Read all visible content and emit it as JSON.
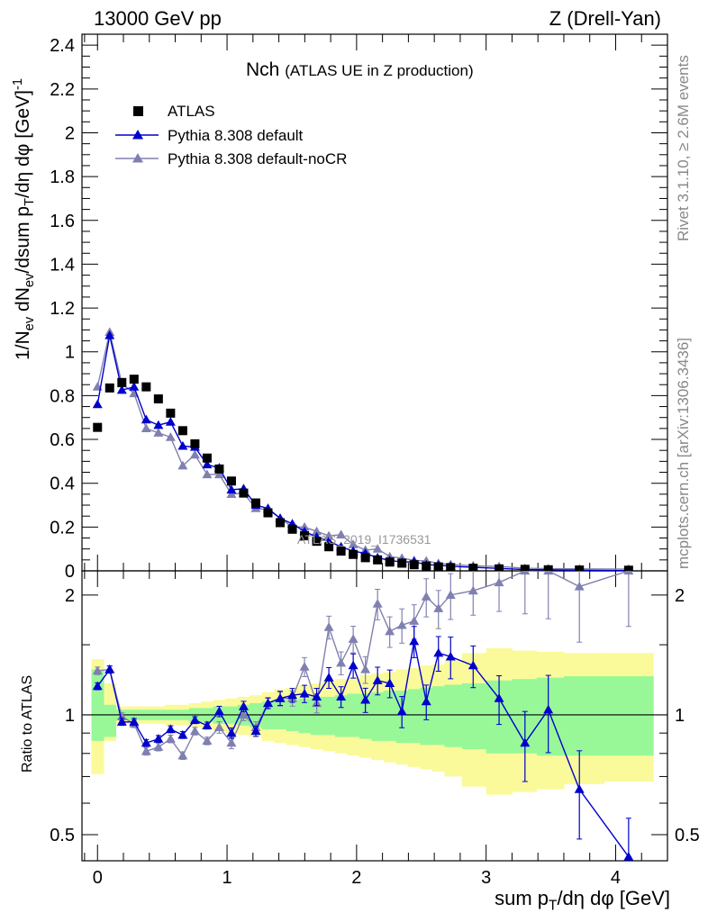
{
  "header": {
    "left": "13000 GeV pp",
    "right": "Z (Drell-Yan)"
  },
  "side_text": {
    "rivet": "Rivet 3.1.10, ≥ 2.6M events",
    "mcplots": "mcplots.cern.ch [arXiv:1306.3436]"
  },
  "colors": {
    "atlas": "#000000",
    "default": "#0000cc",
    "nocr": "#8080b0",
    "band_inner": "#98f898",
    "band_outer": "#fafa9a"
  },
  "chart_data": [
    {
      "type": "scatter",
      "panel": "main",
      "title": "Nch",
      "subtitle": "(ATLAS UE in Z production)",
      "ylabel": "1/N_ev dN_ev/dsum p_T/dη dφ [GeV]^-1",
      "xlabel": "sum p_T/dη dφ [GeV]",
      "xlim": [
        -0.12,
        4.4
      ],
      "ylim": [
        0,
        2.45
      ],
      "yticks": [
        0,
        0.2,
        0.4,
        0.6,
        0.8,
        1,
        1.2,
        1.4,
        1.6,
        1.8,
        2,
        2.2,
        2.4
      ],
      "ytick_labels": [
        "0",
        "0.2",
        "0.4",
        "0.6",
        "0.8",
        "1",
        "1.2",
        "1.4",
        "1.6",
        "1.8",
        "2",
        "2.2",
        "2.4"
      ],
      "xticks": [
        0,
        1,
        2,
        3,
        4
      ],
      "xtick_labels": [
        "0",
        "1",
        "2",
        "3",
        "4"
      ],
      "watermark": "ATLAS_2019_I1736531",
      "legend": [
        "ATLAS",
        "Pythia 8.308 default",
        "Pythia 8.308 default-noCR"
      ],
      "x": [
        0.0,
        0.094,
        0.188,
        0.282,
        0.376,
        0.47,
        0.564,
        0.658,
        0.752,
        0.846,
        0.94,
        1.034,
        1.128,
        1.222,
        1.316,
        1.41,
        1.504,
        1.598,
        1.692,
        1.786,
        1.88,
        1.974,
        2.068,
        2.162,
        2.256,
        2.35,
        2.444,
        2.538,
        2.632,
        2.726,
        2.9,
        3.1,
        3.3,
        3.48,
        3.72,
        4.1
      ],
      "series": [
        {
          "name": "ATLAS",
          "values": [
            0.655,
            0.835,
            0.86,
            0.875,
            0.84,
            0.785,
            0.72,
            0.64,
            0.58,
            0.515,
            0.465,
            0.41,
            0.355,
            0.31,
            0.265,
            0.22,
            0.19,
            0.16,
            0.135,
            0.11,
            0.09,
            0.075,
            0.06,
            0.05,
            0.04,
            0.035,
            0.028,
            0.022,
            0.018,
            0.015,
            0.012,
            0.009,
            0.007,
            0.005,
            0.004,
            0.003
          ]
        },
        {
          "name": "Pythia 8.308 default",
          "values": [
            0.76,
            1.075,
            0.825,
            0.84,
            0.69,
            0.665,
            0.68,
            0.57,
            0.565,
            0.485,
            0.47,
            0.37,
            0.375,
            0.3,
            0.285,
            0.24,
            0.215,
            0.18,
            0.155,
            0.135,
            0.11,
            0.09,
            0.08,
            0.06,
            0.048,
            0.04,
            0.042,
            0.028,
            0.026,
            0.021,
            0.016,
            0.011,
            0.006,
            0.005,
            0.0026,
            0.001
          ]
        },
        {
          "name": "Pythia 8.308 default-noCR",
          "values": [
            0.84,
            1.09,
            0.855,
            0.81,
            0.65,
            0.63,
            0.61,
            0.48,
            0.53,
            0.44,
            0.44,
            0.35,
            0.355,
            0.285,
            0.28,
            0.24,
            0.2,
            0.2,
            0.18,
            0.16,
            0.165,
            0.12,
            0.095,
            0.1,
            0.065,
            0.058,
            0.048,
            0.045,
            0.034,
            0.029,
            0.023,
            0.02,
            0.012,
            0.01,
            0.009,
            0.008
          ]
        }
      ]
    },
    {
      "type": "scatter",
      "panel": "ratio",
      "ylabel": "Ratio to ATLAS",
      "ylim": [
        0.43,
        2.3
      ],
      "yticks": [
        0.5,
        1,
        2
      ],
      "ytick_labels": [
        "0.5",
        "1",
        "2"
      ],
      "x": [
        0.0,
        0.094,
        0.188,
        0.282,
        0.376,
        0.47,
        0.564,
        0.658,
        0.752,
        0.846,
        0.94,
        1.034,
        1.128,
        1.222,
        1.316,
        1.41,
        1.504,
        1.598,
        1.692,
        1.786,
        1.88,
        1.974,
        2.068,
        2.162,
        2.256,
        2.35,
        2.444,
        2.538,
        2.632,
        2.726,
        2.9,
        3.1,
        3.3,
        3.48,
        3.72,
        4.1
      ],
      "series": [
        {
          "name": "Pythia 8.308 default",
          "values": [
            1.18,
            1.3,
            0.96,
            0.96,
            0.85,
            0.87,
            0.92,
            0.89,
            0.97,
            0.94,
            1.02,
            0.9,
            1.05,
            0.91,
            1.07,
            1.1,
            1.12,
            1.13,
            1.11,
            1.24,
            1.11,
            1.33,
            1.09,
            1.22,
            1.2,
            1.02,
            1.53,
            1.08,
            1.43,
            1.4,
            1.33,
            1.1,
            0.85,
            1.03,
            0.65,
            0.44
          ]
        },
        {
          "name": "Pythia 8.308 default-noCR",
          "values": [
            1.29,
            1.3,
            0.99,
            0.95,
            0.81,
            0.83,
            0.87,
            0.79,
            0.91,
            0.86,
            0.93,
            0.85,
            1.0,
            0.93,
            1.07,
            1.1,
            1.1,
            1.32,
            1.07,
            1.66,
            1.35,
            1.55,
            1.3,
            1.9,
            1.62,
            1.68,
            1.72,
            1.98,
            1.85,
            2.0,
            2.05,
            2.15,
            2.3,
            2.3,
            2.1,
            2.3
          ]
        }
      ],
      "errors": [
        0.02,
        0.02,
        0.02,
        0.02,
        0.02,
        0.02,
        0.02,
        0.02,
        0.02,
        0.02,
        0.03,
        0.03,
        0.03,
        0.03,
        0.03,
        0.04,
        0.04,
        0.05,
        0.05,
        0.06,
        0.06,
        0.07,
        0.07,
        0.08,
        0.08,
        0.09,
        0.09,
        0.1,
        0.1,
        0.12,
        0.12,
        0.14,
        0.2,
        0.22,
        0.25,
        0.25
      ],
      "band_inner": [
        [
          0.86,
          1.3
        ],
        [
          0.88,
          1.06
        ],
        [
          0.97,
          1.03
        ],
        [
          0.97,
          1.03
        ],
        [
          0.97,
          1.03
        ],
        [
          0.97,
          1.03
        ],
        [
          0.97,
          1.03
        ],
        [
          0.97,
          1.03
        ],
        [
          0.96,
          1.04
        ],
        [
          0.96,
          1.04
        ],
        [
          0.95,
          1.05
        ],
        [
          0.95,
          1.05
        ],
        [
          0.94,
          1.06
        ],
        [
          0.93,
          1.07
        ],
        [
          0.92,
          1.08
        ],
        [
          0.92,
          1.09
        ],
        [
          0.91,
          1.09
        ],
        [
          0.9,
          1.1
        ],
        [
          0.89,
          1.11
        ],
        [
          0.89,
          1.11
        ],
        [
          0.88,
          1.12
        ],
        [
          0.88,
          1.13
        ],
        [
          0.87,
          1.13
        ],
        [
          0.86,
          1.14
        ],
        [
          0.86,
          1.15
        ],
        [
          0.85,
          1.15
        ],
        [
          0.85,
          1.16
        ],
        [
          0.84,
          1.17
        ],
        [
          0.84,
          1.18
        ],
        [
          0.83,
          1.19
        ],
        [
          0.82,
          1.2
        ],
        [
          0.8,
          1.22
        ],
        [
          0.8,
          1.23
        ],
        [
          0.79,
          1.24
        ],
        [
          0.79,
          1.25
        ],
        [
          0.79,
          1.25
        ]
      ],
      "band_outer": [
        [
          0.71,
          1.38
        ],
        [
          0.86,
          1.2
        ],
        [
          0.95,
          1.05
        ],
        [
          0.95,
          1.05
        ],
        [
          0.95,
          1.05
        ],
        [
          0.95,
          1.05
        ],
        [
          0.94,
          1.06
        ],
        [
          0.94,
          1.06
        ],
        [
          0.93,
          1.07
        ],
        [
          0.92,
          1.08
        ],
        [
          0.91,
          1.09
        ],
        [
          0.9,
          1.1
        ],
        [
          0.89,
          1.11
        ],
        [
          0.88,
          1.12
        ],
        [
          0.86,
          1.14
        ],
        [
          0.85,
          1.16
        ],
        [
          0.84,
          1.17
        ],
        [
          0.83,
          1.19
        ],
        [
          0.82,
          1.2
        ],
        [
          0.81,
          1.22
        ],
        [
          0.8,
          1.23
        ],
        [
          0.79,
          1.24
        ],
        [
          0.78,
          1.26
        ],
        [
          0.77,
          1.27
        ],
        [
          0.76,
          1.28
        ],
        [
          0.75,
          1.3
        ],
        [
          0.74,
          1.31
        ],
        [
          0.73,
          1.33
        ],
        [
          0.72,
          1.34
        ],
        [
          0.7,
          1.37
        ],
        [
          0.66,
          1.43
        ],
        [
          0.63,
          1.47
        ],
        [
          0.64,
          1.45
        ],
        [
          0.65,
          1.44
        ],
        [
          0.67,
          1.43
        ],
        [
          0.68,
          1.43
        ]
      ]
    }
  ]
}
